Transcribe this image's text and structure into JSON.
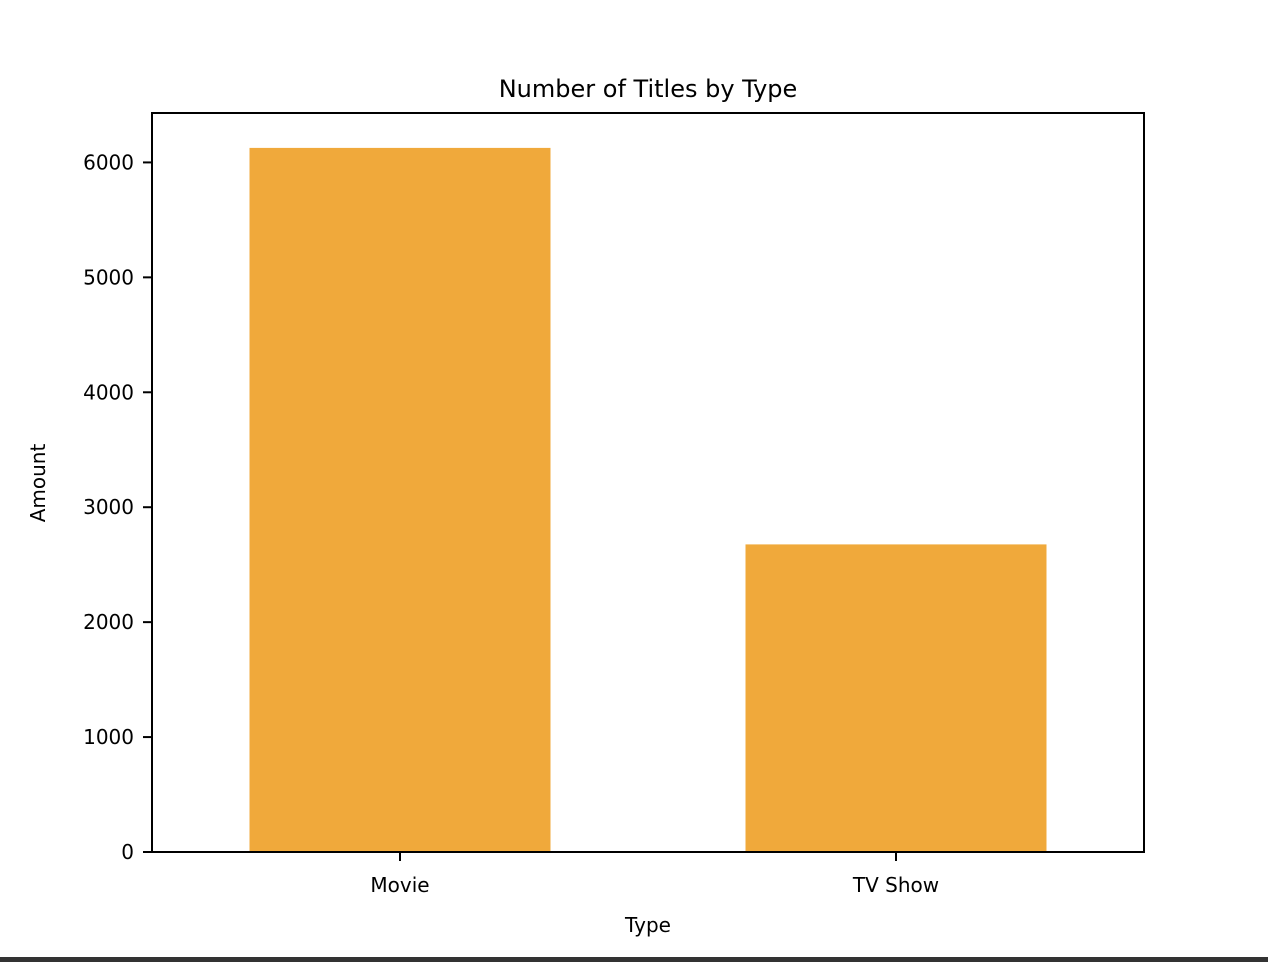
{
  "chart_data": {
    "type": "bar",
    "title": "Number of Titles by Type",
    "xlabel": "Type",
    "ylabel": "Amount",
    "categories": [
      "Movie",
      "TV Show"
    ],
    "values": [
      6126,
      2676
    ],
    "ylim": [
      0,
      6430
    ],
    "yticks": [
      0,
      1000,
      2000,
      3000,
      4000,
      5000,
      6000
    ],
    "ytick_labels": [
      "0",
      "1000",
      "2000",
      "3000",
      "4000",
      "5000",
      "6000"
    ],
    "bar_color": "#f0a93b",
    "grid": false,
    "legend": "none"
  }
}
